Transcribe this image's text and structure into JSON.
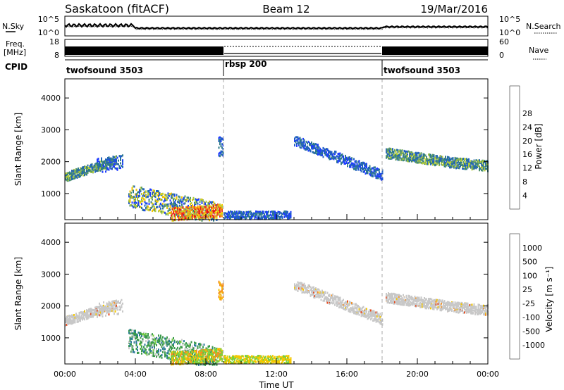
{
  "header": {
    "station": "Saskatoon (fitACF)",
    "beam": "Beam 12",
    "date": "19/Mar/2016"
  },
  "summary_panels": {
    "nsky_label": "N.Sky",
    "nsearch_label": "N.Search",
    "freq_label_line1": "Freq.",
    "freq_label_line2": "[MHz]",
    "nave_label": "Nave",
    "cpid_label": "CPID",
    "noise_ticks_left": [
      "10^5",
      "10^0"
    ],
    "noise_ticks_right": [
      "10^5",
      "10^0"
    ],
    "freq_ticks_left": [
      "18",
      "8"
    ],
    "nave_ticks_right": [
      "60",
      "0"
    ]
  },
  "cpid_segments": [
    {
      "name": "twofsound 3503",
      "start_hour": 0
    },
    {
      "name": "rbsp 200",
      "start_hour": 9
    },
    {
      "name": "twofsound 3503",
      "start_hour": 18
    }
  ],
  "chart_data": [
    {
      "type": "heatmap",
      "title": "Power",
      "ylabel": "Slant Range [km]",
      "xlabel": "",
      "xlim": [
        0,
        24
      ],
      "ylim": [
        180,
        4600
      ],
      "yticks": [
        1000,
        2000,
        3000,
        4000
      ],
      "colorbar": {
        "label": "Power [dB]",
        "ticks": [
          "4",
          "8",
          "12",
          "16",
          "20",
          "24",
          "28"
        ],
        "range": [
          0,
          30
        ]
      },
      "colors": [
        "#1e3cff",
        "#2060c0",
        "#2f7a8a",
        "#5a9a64",
        "#b3cc3c",
        "#f5c800",
        "#f59020",
        "#f04a1e",
        "#e8141e"
      ]
    },
    {
      "type": "heatmap",
      "title": "Velocity",
      "ylabel": "Slant Range [km]",
      "xlabel": "Time UT",
      "xlim": [
        0,
        24
      ],
      "ylim": [
        180,
        4600
      ],
      "yticks": [
        1000,
        2000,
        3000,
        4000
      ],
      "xtick_labels": [
        "00:00",
        "04:00",
        "08:00",
        "12:00",
        "16:00",
        "20:00",
        "00:00"
      ],
      "colorbar": {
        "label": "Velocity [m s⁻¹]",
        "ticks": [
          "1000",
          "500",
          "100",
          "25",
          "-25",
          "-100",
          "-500",
          "-1000"
        ]
      },
      "colors": [
        "#2040c0",
        "#2a7a9a",
        "#3a9a4a",
        "#7ad040",
        "#c8c8c8",
        "#f5c800",
        "#f59020",
        "#e84a1e",
        "#e0141e"
      ]
    }
  ]
}
